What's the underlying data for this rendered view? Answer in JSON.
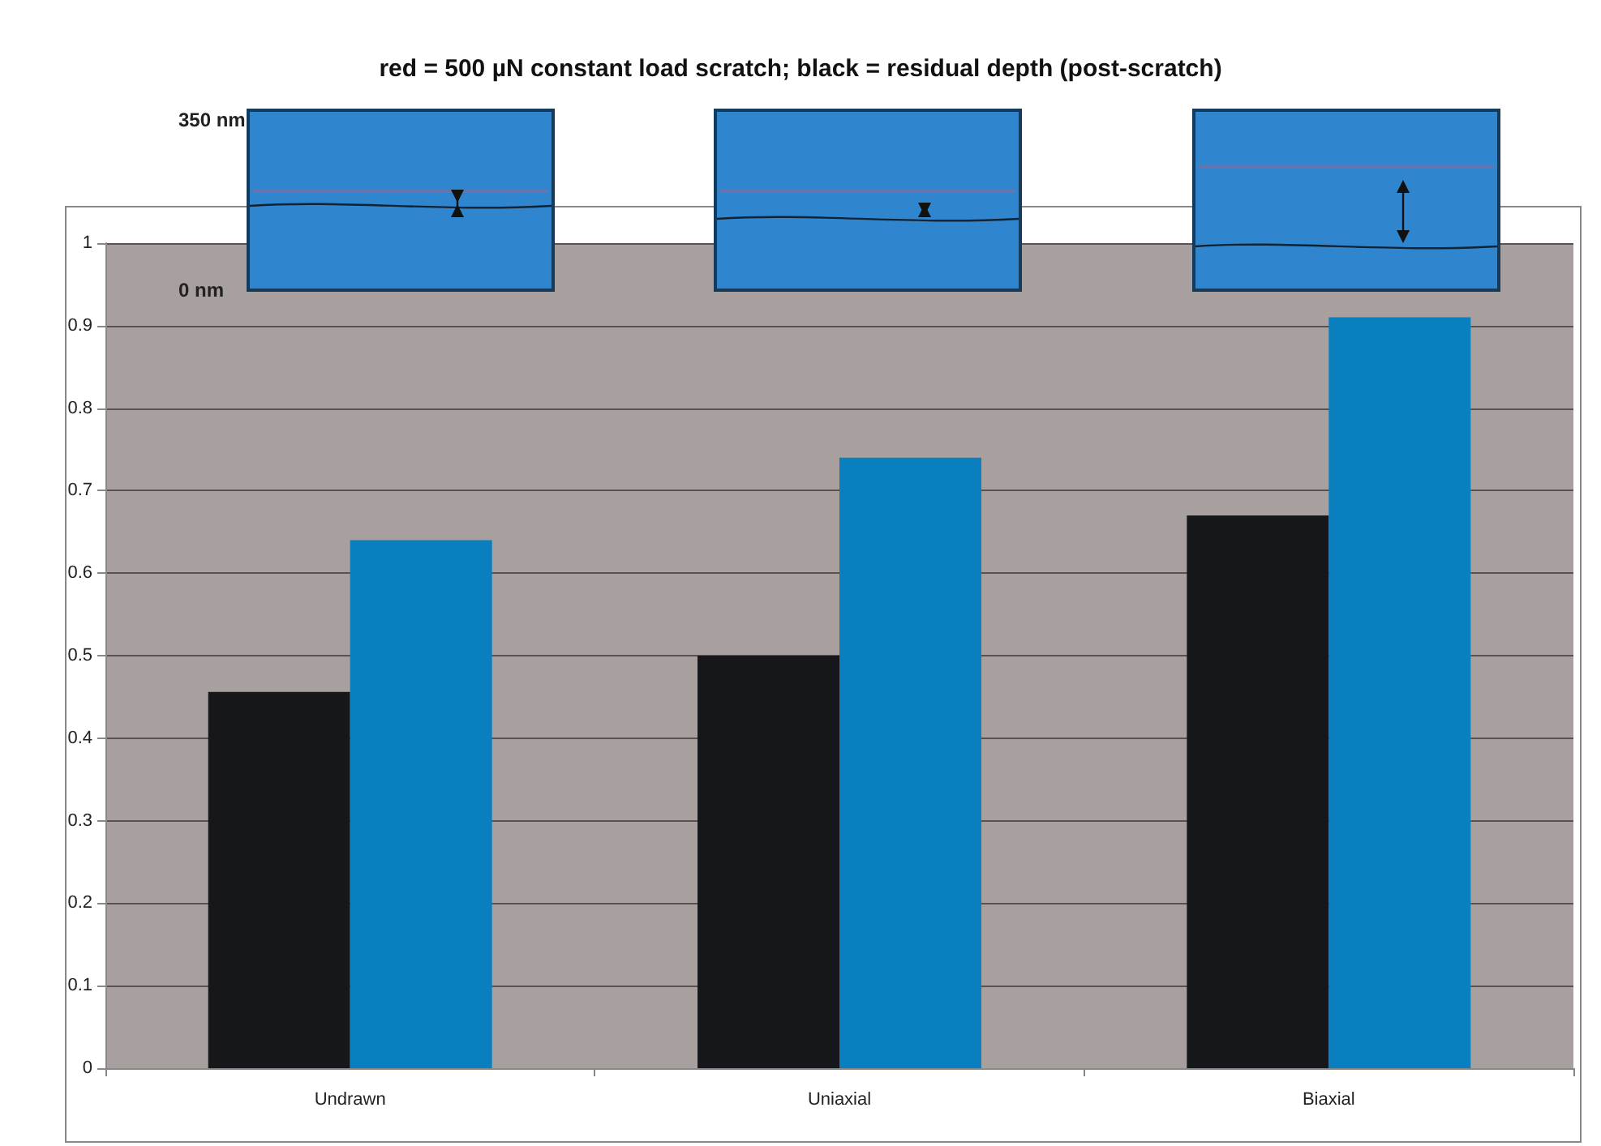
{
  "chart_data": {
    "type": "bar",
    "title": "red = 500 µN constant load scratch; black = residual depth (post-scratch)",
    "categories": [
      "Undrawn",
      "Uniaxial",
      "Biaxial"
    ],
    "series": [
      {
        "color": "#16171b",
        "values": [
          0.456,
          0.5,
          0.67
        ]
      },
      {
        "color": "#0a7fbf",
        "values": [
          0.64,
          0.74,
          0.91
        ]
      }
    ],
    "ylim": [
      0,
      1
    ],
    "yticks": [
      0,
      0.1,
      0.2,
      0.3,
      0.4,
      0.5,
      0.6,
      0.7,
      0.8,
      0.9,
      1
    ],
    "grid": "y",
    "annotations": [
      "350 nm",
      "0 nm"
    ]
  }
}
